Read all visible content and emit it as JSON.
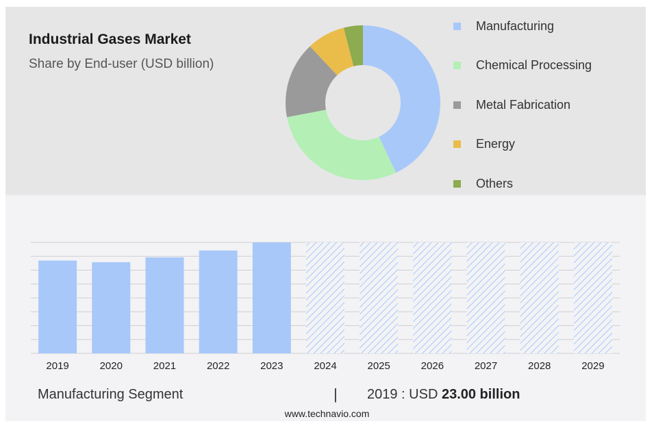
{
  "header": {
    "title": "Industrial Gases Market",
    "subtitle": "Share by End-user (USD billion)"
  },
  "chart_data": [
    {
      "type": "pie",
      "style": "donut",
      "legend_position": "right",
      "slices": [
        {
          "label": "Manufacturing",
          "value": 43,
          "color": "#a8c8fa"
        },
        {
          "label": "Chemical Processing",
          "value": 29,
          "color": "#b4efb6"
        },
        {
          "label": "Metal Fabrication",
          "value": 16,
          "color": "#9a9a9a"
        },
        {
          "label": "Energy",
          "value": 8,
          "color": "#eabd4a"
        },
        {
          "label": "Others",
          "value": 4,
          "color": "#8dab4f"
        }
      ]
    },
    {
      "type": "bar",
      "categories": [
        "2019",
        "2020",
        "2021",
        "2022",
        "2023",
        "2024",
        "2025",
        "2026",
        "2027",
        "2028",
        "2029"
      ],
      "values": [
        23.0,
        22.6,
        23.8,
        25.5,
        27.5,
        null,
        null,
        null,
        null,
        null,
        null
      ],
      "forecast": [
        false,
        false,
        false,
        false,
        false,
        true,
        true,
        true,
        true,
        true,
        true
      ],
      "ylim": [
        0,
        27.5
      ],
      "grid": true,
      "bar_color": "#a8c8fa",
      "forecast_hatch_color": "#a8c8fa"
    }
  ],
  "footer": {
    "segment_label": "Manufacturing Segment",
    "separator": "|",
    "year_label": "2019 : USD",
    "value_label": "23.00 billion",
    "url": "www.technavio.com"
  }
}
